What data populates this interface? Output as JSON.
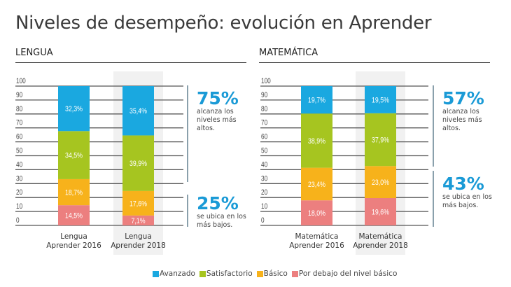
{
  "title": "Niveles de desempeño: evolución en Aprender",
  "colors": {
    "avanzado": "#1aa8e0",
    "satisfactorio": "#a6c520",
    "basico": "#f7b21b",
    "por_debajo": "#ec7f7f",
    "highlight_bg": "#f1f1f1",
    "callout_blue": "#1a9ad6"
  },
  "legend": [
    {
      "key": "avanzado",
      "label": "Avanzado"
    },
    {
      "key": "satisfactorio",
      "label": "Satisfactorio"
    },
    {
      "key": "basico",
      "label": "Básico"
    },
    {
      "key": "por_debajo",
      "label": "Por debajo del nivel básico"
    }
  ],
  "sections": [
    {
      "name": "LENGUA",
      "callouts": [
        {
          "value": "75%",
          "text": "alcanza los niveles más altos."
        },
        {
          "value": "25%",
          "text": "se ubica en los más bajos."
        }
      ]
    },
    {
      "name": "MATEMÁTICA",
      "callouts": [
        {
          "value": "57%",
          "text": "alcanza los niveles más altos."
        },
        {
          "value": "43%",
          "text": "se ubica en los más bajos."
        }
      ]
    }
  ],
  "chart_data": [
    {
      "type": "bar",
      "stacked": true,
      "title": "LENGUA",
      "categories": [
        [
          "Lengua",
          "Aprender 2016"
        ],
        [
          "Lengua",
          "Aprender 2018"
        ]
      ],
      "highlighted_category": 1,
      "series": [
        {
          "name": "Por debajo del nivel básico",
          "key": "por_debajo",
          "values": [
            14.5,
            7.1
          ],
          "labels": [
            "14,5%",
            "7,1%"
          ]
        },
        {
          "name": "Básico",
          "key": "basico",
          "values": [
            18.7,
            17.6
          ],
          "labels": [
            "18,7%",
            "17,6%"
          ]
        },
        {
          "name": "Satisfactorio",
          "key": "satisfactorio",
          "values": [
            34.5,
            39.9
          ],
          "labels": [
            "34,5%",
            "39,9%"
          ]
        },
        {
          "name": "Avanzado",
          "key": "avanzado",
          "values": [
            32.3,
            35.4
          ],
          "labels": [
            "32,3%",
            "35,4%"
          ]
        }
      ],
      "yticks": [
        0,
        10,
        20,
        30,
        40,
        50,
        60,
        70,
        80,
        90,
        100
      ],
      "ylim": [
        0,
        100
      ],
      "grid": true
    },
    {
      "type": "bar",
      "stacked": true,
      "title": "MATEMÁTICA",
      "categories": [
        [
          "Matemática",
          "Aprender 2016"
        ],
        [
          "Matemática",
          "Aprender 2018"
        ]
      ],
      "highlighted_category": 1,
      "series": [
        {
          "name": "Por debajo del nivel básico",
          "key": "por_debajo",
          "values": [
            18.0,
            19.6
          ],
          "labels": [
            "18,0%",
            "19,6%"
          ]
        },
        {
          "name": "Básico",
          "key": "basico",
          "values": [
            23.4,
            23.0
          ],
          "labels": [
            "23,4%",
            "23,0%"
          ]
        },
        {
          "name": "Satisfactorio",
          "key": "satisfactorio",
          "values": [
            38.9,
            37.9
          ],
          "labels": [
            "38,9%",
            "37,9%"
          ]
        },
        {
          "name": "Avanzado",
          "key": "avanzado",
          "values": [
            19.7,
            19.5
          ],
          "labels": [
            "19,7%",
            "19,5%"
          ]
        }
      ],
      "yticks": [
        0,
        10,
        20,
        30,
        40,
        50,
        60,
        70,
        80,
        90,
        100
      ],
      "ylim": [
        0,
        100
      ],
      "grid": true
    }
  ]
}
